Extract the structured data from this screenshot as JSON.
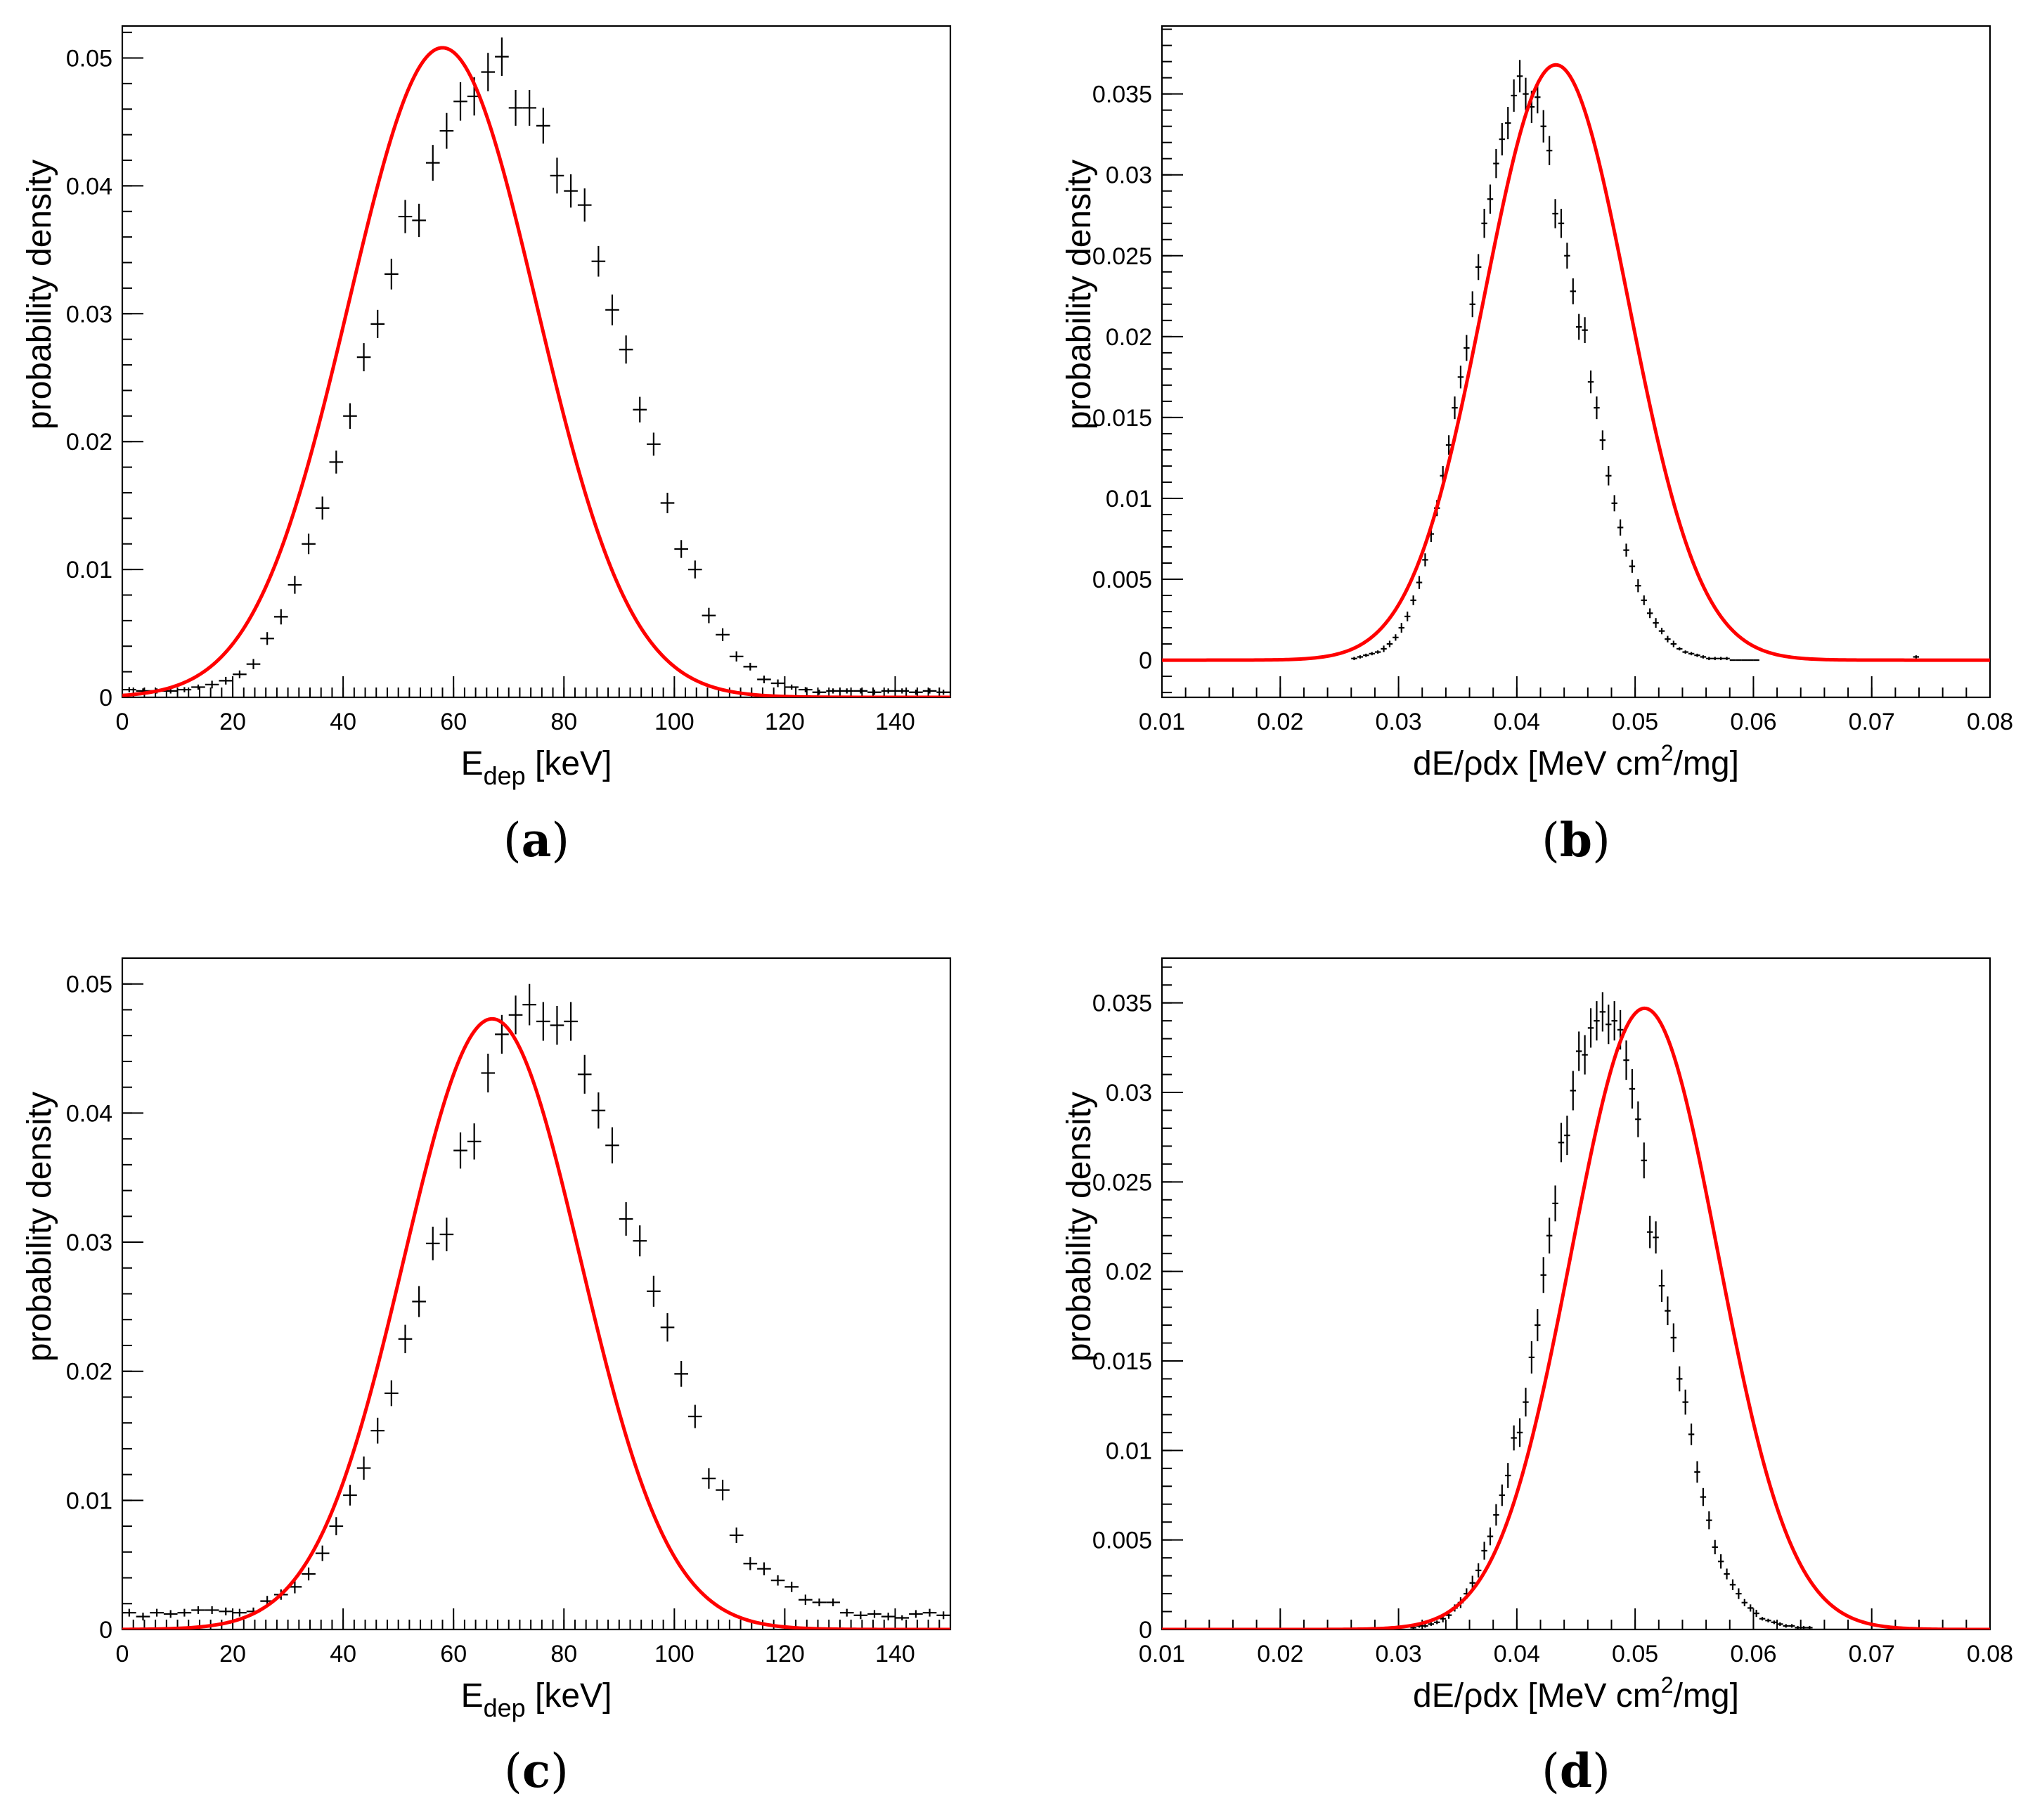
{
  "colors": {
    "fit": "#ff0000",
    "data": "#000000",
    "background": "#ffffff"
  },
  "chart_data": [
    {
      "panel": "a",
      "caption_letter": "a",
      "type": "histogram_with_fit",
      "xlabel": {
        "main": "E",
        "sub": "dep",
        "rest": " [keV]"
      },
      "ylabel": "probability density",
      "xlim": [
        0,
        150
      ],
      "ylim": [
        0,
        0.0525
      ],
      "xticks": [
        0,
        20,
        40,
        60,
        80,
        100,
        120,
        140
      ],
      "xtick_labels": [
        "0",
        "20",
        "40",
        "60",
        "80",
        "100",
        "120",
        "140"
      ],
      "xminor": 2,
      "yticks": [
        0,
        0.01,
        0.02,
        0.03,
        0.04,
        0.05
      ],
      "ytick_labels": [
        "0",
        "0.01",
        "0.02",
        "0.03",
        "0.04",
        "0.05"
      ],
      "yminor": 0.002,
      "bin_width": 2.5,
      "bins": [
        1.25,
        3.75,
        6.25,
        8.75,
        11.25,
        13.75,
        16.25,
        18.75,
        21.25,
        23.75,
        26.25,
        28.75,
        31.25,
        33.75,
        36.25,
        38.75,
        41.25,
        43.75,
        46.25,
        48.75,
        51.25,
        53.75,
        56.25,
        58.75,
        61.25,
        63.75,
        66.25,
        68.75,
        71.25,
        73.75,
        76.25,
        78.75,
        81.25,
        83.75,
        86.25,
        88.75,
        91.25,
        93.75,
        96.25,
        98.75,
        101.25,
        103.75,
        106.25,
        108.75,
        111.25,
        113.75,
        116.25,
        118.75,
        121.25,
        123.75,
        126.25,
        128.75,
        131.25,
        133.75,
        136.25,
        138.75,
        141.25,
        143.75,
        146.25,
        148.75
      ],
      "values": [
        0.0006,
        0.0005,
        0.0005,
        0.0005,
        0.0006,
        0.0008,
        0.001,
        0.0013,
        0.0018,
        0.0026,
        0.0046,
        0.0063,
        0.0088,
        0.012,
        0.0148,
        0.0184,
        0.022,
        0.0266,
        0.0292,
        0.0331,
        0.0376,
        0.0373,
        0.0418,
        0.0443,
        0.0466,
        0.047,
        0.0489,
        0.0501,
        0.0461,
        0.0461,
        0.0447,
        0.0408,
        0.0396,
        0.0385,
        0.0341,
        0.0303,
        0.0272,
        0.0225,
        0.0198,
        0.0152,
        0.0116,
        0.01,
        0.0064,
        0.0049,
        0.0032,
        0.0024,
        0.0014,
        0.0011,
        0.0008,
        0.0006,
        0.0004,
        0.0005,
        0.0005,
        0.0005,
        0.0004,
        0.0005,
        0.0005,
        0.0004,
        0.0005,
        0.0004
      ],
      "errors": [
        0.0002,
        0.0002,
        0.0002,
        0.0002,
        0.0002,
        0.0002,
        0.0003,
        0.0003,
        0.0003,
        0.0004,
        0.0005,
        0.0006,
        0.0007,
        0.0008,
        0.0009,
        0.0009,
        0.001,
        0.0011,
        0.0011,
        0.0012,
        0.0013,
        0.0013,
        0.0014,
        0.0014,
        0.0015,
        0.0015,
        0.0015,
        0.0015,
        0.0014,
        0.0014,
        0.0014,
        0.0014,
        0.0013,
        0.0013,
        0.0012,
        0.0012,
        0.0011,
        0.001,
        0.0009,
        0.0008,
        0.0007,
        0.0007,
        0.0006,
        0.0005,
        0.0004,
        0.0003,
        0.0003,
        0.0003,
        0.0002,
        0.0002,
        0.0002,
        0.0002,
        0.0002,
        0.0002,
        0.0002,
        0.0002,
        0.0002,
        0.0002,
        0.0002,
        0.0002
      ],
      "fit": {
        "model": "gaussian",
        "amplitude": 0.0508,
        "mean": 58.0,
        "sigma": 17.0,
        "range": [
          0,
          150
        ]
      }
    },
    {
      "panel": "b",
      "caption_letter": "b",
      "type": "histogram_with_fit",
      "xlabel": {
        "main": "dE/ρdx [MeV cm",
        "sup": "2",
        "rest": "/mg]"
      },
      "ylabel": "probability density",
      "xlim": [
        0.01,
        0.08
      ],
      "ylim": [
        -0.0023,
        0.0392
      ],
      "xticks": [
        0.01,
        0.02,
        0.03,
        0.04,
        0.05,
        0.06,
        0.07,
        0.08
      ],
      "xtick_labels": [
        "0.01",
        "0.02",
        "0.03",
        "0.04",
        "0.05",
        "0.06",
        "0.07",
        "0.08"
      ],
      "xminor": 0.002,
      "yticks": [
        0,
        0.005,
        0.01,
        0.015,
        0.02,
        0.025,
        0.03,
        0.035
      ],
      "ytick_labels": [
        "0",
        "0.005",
        "0.01",
        "0.015",
        "0.02",
        "0.025",
        "0.03",
        "0.035"
      ],
      "yminor": 0.001,
      "bin_width": 0.0005,
      "bins": [
        0.02625,
        0.02675,
        0.02725,
        0.02775,
        0.02825,
        0.02875,
        0.02925,
        0.02975,
        0.03025,
        0.03075,
        0.03125,
        0.03175,
        0.03225,
        0.03275,
        0.03325,
        0.03375,
        0.03425,
        0.03475,
        0.03525,
        0.03575,
        0.03625,
        0.03675,
        0.03725,
        0.03775,
        0.03825,
        0.03875,
        0.03925,
        0.03975,
        0.04025,
        0.04075,
        0.04125,
        0.04175,
        0.04225,
        0.04275,
        0.04325,
        0.04375,
        0.04425,
        0.04475,
        0.04525,
        0.04575,
        0.04625,
        0.04675,
        0.04725,
        0.04775,
        0.04825,
        0.04875,
        0.04925,
        0.04975,
        0.05025,
        0.05075,
        0.05125,
        0.05175,
        0.05225,
        0.05275,
        0.05325,
        0.05375,
        0.05425,
        0.05475,
        0.05525,
        0.05575,
        0.05625,
        0.05675,
        0.05725,
        0.05775,
        0.05825,
        0.05875,
        0.05925,
        0.05975,
        0.06025,
        0.07375
      ],
      "values": [
        0.0001,
        0.0002,
        0.0003,
        0.0004,
        0.0005,
        0.0007,
        0.001,
        0.0014,
        0.002,
        0.0027,
        0.0037,
        0.0048,
        0.0062,
        0.0078,
        0.0094,
        0.0114,
        0.0133,
        0.0156,
        0.0175,
        0.0193,
        0.022,
        0.0243,
        0.027,
        0.0285,
        0.0307,
        0.0322,
        0.0332,
        0.0349,
        0.0361,
        0.035,
        0.0342,
        0.0348,
        0.033,
        0.0315,
        0.0276,
        0.027,
        0.025,
        0.0228,
        0.0206,
        0.0204,
        0.0172,
        0.0156,
        0.0136,
        0.0114,
        0.0097,
        0.0082,
        0.0068,
        0.0058,
        0.0046,
        0.0037,
        0.0029,
        0.0023,
        0.0018,
        0.0013,
        0.001,
        0.0007,
        0.0005,
        0.0004,
        0.0003,
        0.0002,
        0.0001,
        0.0001,
        0.0001,
        0.0001,
        0.0,
        0.0,
        0.0,
        0.0,
        0.0,
        0.0002
      ],
      "errors": [
        0.0001,
        0.0001,
        0.0001,
        0.0001,
        0.0001,
        0.0002,
        0.0002,
        0.0002,
        0.0003,
        0.0003,
        0.0003,
        0.0004,
        0.0004,
        0.0005,
        0.0005,
        0.0006,
        0.0006,
        0.0007,
        0.0007,
        0.0008,
        0.0008,
        0.0008,
        0.0009,
        0.0009,
        0.0009,
        0.001,
        0.001,
        0.001,
        0.001,
        0.001,
        0.001,
        0.001,
        0.001,
        0.0009,
        0.0009,
        0.0009,
        0.0008,
        0.0008,
        0.0008,
        0.0008,
        0.0007,
        0.0007,
        0.0006,
        0.0006,
        0.0005,
        0.0005,
        0.0004,
        0.0004,
        0.0004,
        0.0003,
        0.0003,
        0.0003,
        0.0002,
        0.0002,
        0.0002,
        0.0001,
        0.0001,
        0.0001,
        0.0001,
        0.0001,
        0.0001,
        0.0001,
        0.0001,
        0.0001,
        0.0,
        0.0,
        0.0,
        0.0,
        0.0,
        0.0001
      ],
      "fit": {
        "model": "gaussian",
        "amplitude": 0.0368,
        "mean": 0.0433,
        "sigma": 0.0061,
        "range": [
          0.01,
          0.08
        ]
      }
    },
    {
      "panel": "c",
      "caption_letter": "c",
      "type": "histogram_with_fit",
      "xlabel": {
        "main": "E",
        "sub": "dep",
        "rest": " [keV]"
      },
      "ylabel": "probability density",
      "xlim": [
        0,
        150
      ],
      "ylim": [
        0,
        0.052
      ],
      "xticks": [
        0,
        20,
        40,
        60,
        80,
        100,
        120,
        140
      ],
      "xtick_labels": [
        "0",
        "20",
        "40",
        "60",
        "80",
        "100",
        "120",
        "140"
      ],
      "xminor": 2,
      "yticks": [
        0,
        0.01,
        0.02,
        0.03,
        0.04,
        0.05
      ],
      "ytick_labels": [
        "0",
        "0.01",
        "0.02",
        "0.03",
        "0.04",
        "0.05"
      ],
      "yminor": 0.002,
      "bin_width": 2.5,
      "bins": [
        1.25,
        3.75,
        6.25,
        8.75,
        11.25,
        13.75,
        16.25,
        18.75,
        21.25,
        23.75,
        26.25,
        28.75,
        31.25,
        33.75,
        36.25,
        38.75,
        41.25,
        43.75,
        46.25,
        48.75,
        51.25,
        53.75,
        56.25,
        58.75,
        61.25,
        63.75,
        66.25,
        68.75,
        71.25,
        73.75,
        76.25,
        78.75,
        81.25,
        83.75,
        86.25,
        88.75,
        91.25,
        93.75,
        96.25,
        98.75,
        101.25,
        103.75,
        106.25,
        108.75,
        111.25,
        113.75,
        116.25,
        118.75,
        121.25,
        123.75,
        126.25,
        128.75,
        131.25,
        133.75,
        136.25,
        138.75,
        141.25,
        143.75,
        146.25,
        148.75
      ],
      "values": [
        0.0013,
        0.001,
        0.0013,
        0.0012,
        0.0013,
        0.0015,
        0.0015,
        0.0014,
        0.0013,
        0.0014,
        0.0022,
        0.0027,
        0.0033,
        0.0043,
        0.0059,
        0.008,
        0.0104,
        0.0125,
        0.0154,
        0.0183,
        0.0225,
        0.0254,
        0.0299,
        0.0306,
        0.0371,
        0.0378,
        0.0431,
        0.0461,
        0.0476,
        0.0484,
        0.0471,
        0.0468,
        0.0471,
        0.043,
        0.0402,
        0.0375,
        0.0318,
        0.0301,
        0.0262,
        0.0234,
        0.0198,
        0.0165,
        0.0117,
        0.0108,
        0.0073,
        0.0051,
        0.0047,
        0.0038,
        0.0033,
        0.0023,
        0.0021,
        0.0021,
        0.0013,
        0.0011,
        0.0012,
        0.001,
        0.0009,
        0.0012,
        0.0013,
        0.0011
      ],
      "errors": [
        0.0003,
        0.0003,
        0.0003,
        0.0003,
        0.0003,
        0.0003,
        0.0003,
        0.0003,
        0.0003,
        0.0003,
        0.0004,
        0.0004,
        0.0005,
        0.0005,
        0.0006,
        0.0007,
        0.0008,
        0.0009,
        0.001,
        0.001,
        0.0011,
        0.0012,
        0.0013,
        0.0013,
        0.0014,
        0.0014,
        0.0015,
        0.0015,
        0.0015,
        0.0016,
        0.0015,
        0.0015,
        0.0015,
        0.0015,
        0.0014,
        0.0014,
        0.0013,
        0.0012,
        0.0012,
        0.0011,
        0.001,
        0.0009,
        0.0008,
        0.0008,
        0.0006,
        0.0005,
        0.0005,
        0.0004,
        0.0004,
        0.0004,
        0.0003,
        0.0003,
        0.0003,
        0.0003,
        0.0003,
        0.0003,
        0.0002,
        0.0003,
        0.0003,
        0.0003
      ],
      "fit": {
        "model": "gaussian",
        "amplitude": 0.0473,
        "mean": 67.0,
        "sigma": 16.0,
        "range": [
          0,
          150
        ]
      }
    },
    {
      "panel": "d",
      "caption_letter": "d",
      "type": "histogram_with_fit",
      "xlabel": {
        "main": "dE/ρdx [MeV cm",
        "sup": "2",
        "rest": "/mg]"
      },
      "ylabel": "probability density",
      "xlim": [
        0.01,
        0.08
      ],
      "ylim": [
        0,
        0.0375
      ],
      "xticks": [
        0.01,
        0.02,
        0.03,
        0.04,
        0.05,
        0.06,
        0.07,
        0.08
      ],
      "xtick_labels": [
        "0.01",
        "0.02",
        "0.03",
        "0.04",
        "0.05",
        "0.06",
        "0.07",
        "0.08"
      ],
      "xminor": 0.002,
      "yticks": [
        0,
        0.005,
        0.01,
        0.015,
        0.02,
        0.025,
        0.03,
        0.035
      ],
      "ytick_labels": [
        "0",
        "0.005",
        "0.01",
        "0.015",
        "0.02",
        "0.025",
        "0.03",
        "0.035"
      ],
      "yminor": 0.001,
      "bin_width": 0.0005,
      "bins": [
        0.03125,
        0.03175,
        0.03225,
        0.03275,
        0.03325,
        0.03375,
        0.03425,
        0.03475,
        0.03525,
        0.03575,
        0.03625,
        0.03675,
        0.03725,
        0.03775,
        0.03825,
        0.03875,
        0.03925,
        0.03975,
        0.04025,
        0.04075,
        0.04125,
        0.04175,
        0.04225,
        0.04275,
        0.04325,
        0.04375,
        0.04425,
        0.04475,
        0.04525,
        0.04575,
        0.04625,
        0.04675,
        0.04725,
        0.04775,
        0.04825,
        0.04875,
        0.04925,
        0.04975,
        0.05025,
        0.05075,
        0.05125,
        0.05175,
        0.05225,
        0.05275,
        0.05325,
        0.05375,
        0.05425,
        0.05475,
        0.05525,
        0.05575,
        0.05625,
        0.05675,
        0.05725,
        0.05775,
        0.05825,
        0.05875,
        0.05925,
        0.05975,
        0.06025,
        0.06075,
        0.06125,
        0.06175,
        0.06225,
        0.06275,
        0.06325,
        0.06375,
        0.06425,
        0.06475,
        0.06525,
        0.06575,
        0.06625,
        0.06675,
        0.06725,
        0.06775
      ],
      "values": [
        0.0001,
        0.0002,
        0.0002,
        0.0003,
        0.0004,
        0.0006,
        0.0008,
        0.0012,
        0.0015,
        0.002,
        0.0026,
        0.0033,
        0.0044,
        0.0052,
        0.0064,
        0.0075,
        0.0086,
        0.0107,
        0.011,
        0.0127,
        0.0152,
        0.017,
        0.0198,
        0.022,
        0.0238,
        0.0272,
        0.0276,
        0.0301,
        0.0323,
        0.0321,
        0.0336,
        0.034,
        0.0345,
        0.0338,
        0.034,
        0.0335,
        0.0318,
        0.0302,
        0.0285,
        0.0262,
        0.0222,
        0.0219,
        0.0192,
        0.0178,
        0.0163,
        0.014,
        0.0127,
        0.0109,
        0.0088,
        0.0074,
        0.0061,
        0.0046,
        0.0038,
        0.0031,
        0.0025,
        0.002,
        0.0015,
        0.0012,
        0.0009,
        0.0006,
        0.0005,
        0.0004,
        0.0003,
        0.0002,
        0.0002,
        0.0001,
        0.0001,
        0.0001,
        0.0,
        0.0,
        0.0,
        0.0,
        0.0,
        0.0
      ],
      "errors": [
        0.0001,
        0.0001,
        0.0001,
        0.0001,
        0.0001,
        0.0002,
        0.0002,
        0.0002,
        0.0003,
        0.0003,
        0.0004,
        0.0004,
        0.0005,
        0.0005,
        0.0006,
        0.0006,
        0.0007,
        0.0007,
        0.0008,
        0.0008,
        0.0009,
        0.0009,
        0.001,
        0.001,
        0.001,
        0.0011,
        0.0011,
        0.0011,
        0.0011,
        0.0011,
        0.0011,
        0.0011,
        0.0011,
        0.0011,
        0.0011,
        0.0011,
        0.0011,
        0.0011,
        0.001,
        0.001,
        0.0009,
        0.0009,
        0.0009,
        0.0008,
        0.0008,
        0.0007,
        0.0007,
        0.0006,
        0.0006,
        0.0005,
        0.0005,
        0.0004,
        0.0004,
        0.0003,
        0.0003,
        0.0003,
        0.0002,
        0.0002,
        0.0002,
        0.0001,
        0.0001,
        0.0001,
        0.0001,
        0.0001,
        0.0001,
        0.0001,
        0.0001,
        0.0001,
        0.0,
        0.0,
        0.0,
        0.0,
        0.0,
        0.0
      ],
      "fit": {
        "model": "gaussian",
        "amplitude": 0.0347,
        "mean": 0.0508,
        "sigma": 0.0062,
        "range": [
          0.01,
          0.08
        ]
      }
    }
  ]
}
